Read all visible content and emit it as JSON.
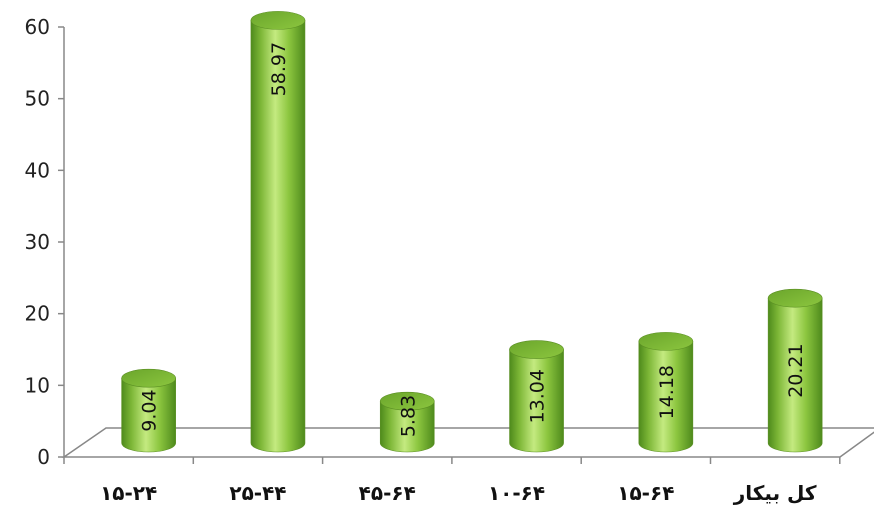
{
  "chart_data": {
    "type": "bar",
    "style": "3d-cylinder",
    "categories": [
      "۱۵-۲۴",
      "۲۵-۴۴",
      "۴۵-۶۴",
      "۱۰-۶۴",
      "۱۵-۶۴",
      "کل بیکار"
    ],
    "values": [
      9.04,
      58.97,
      5.83,
      13.04,
      14.18,
      20.21
    ],
    "value_labels": [
      "9.04",
      "58.97",
      "5.83",
      "13.04",
      "14.18",
      "20.21"
    ],
    "ylim": [
      0,
      60
    ],
    "yticks": [
      0,
      10,
      20,
      30,
      40,
      50,
      60
    ],
    "title": "",
    "xlabel": "",
    "ylabel": "",
    "grid": false,
    "legend": "none",
    "bar_color": "#8cc63f",
    "bar_color_dark": "#4e8a1c",
    "bar_color_light": "#c4ea80"
  }
}
